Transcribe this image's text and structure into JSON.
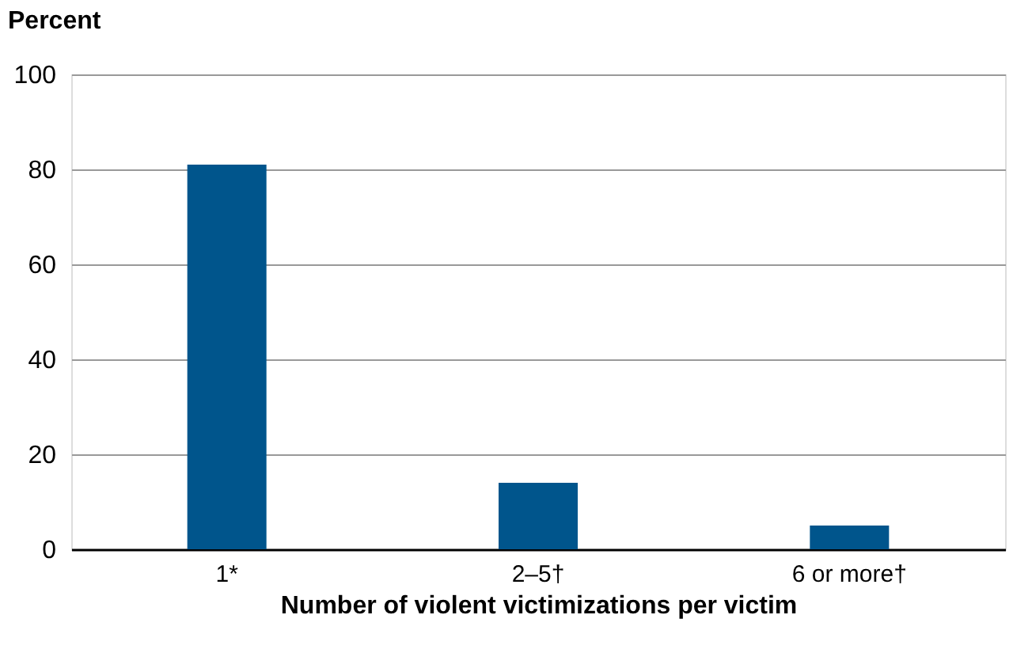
{
  "chart_data": {
    "type": "bar",
    "xlabel": "Number of violent victimizations per victim",
    "ylabel": "Percent",
    "categories": [
      "1*",
      "2–5†",
      "6 or more†"
    ],
    "values": [
      81,
      14,
      5
    ],
    "color": "#00558c",
    "ylim": [
      0,
      100
    ],
    "yticks": [
      0,
      20,
      40,
      60,
      80,
      100
    ],
    "grid": "y"
  }
}
